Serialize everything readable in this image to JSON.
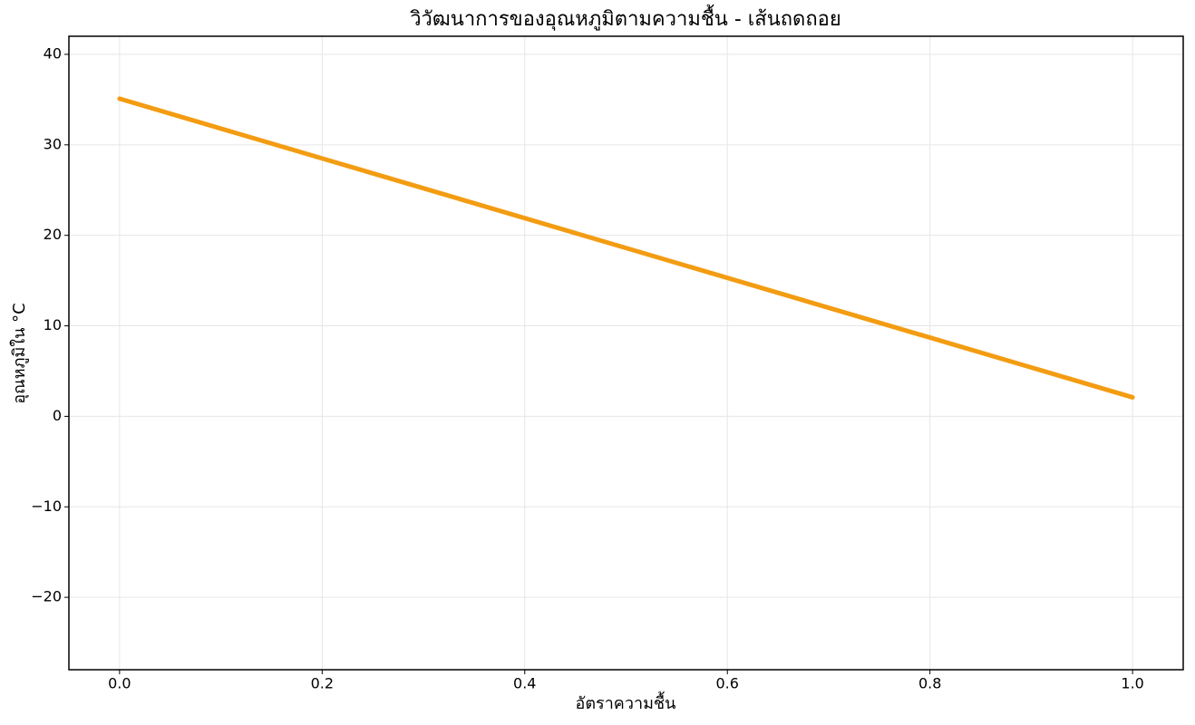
{
  "chart_data": {
    "type": "line",
    "title": "วิวัฒนาการของอุณหภูมิตามความชื้น - เส้นถดถอย",
    "x_label": "อัตราความชื้น",
    "y_label": "อุณหภูมิใน °C",
    "x": [
      0,
      1
    ],
    "values": [
      35.1,
      2.1
    ],
    "color": "#f39c12",
    "xlim": [
      -0.05,
      1.05
    ],
    "xticks": [
      {
        "value": 0,
        "label": "0.0"
      },
      0.2,
      0.4,
      0.6,
      0.8,
      {
        "value": 1,
        "label": "1.0"
      }
    ],
    "ylim": [
      -28,
      42
    ],
    "yticks": [
      {
        "value": -20,
        "label": "−20"
      },
      {
        "value": -10,
        "label": "−10"
      },
      0,
      10,
      20,
      30,
      40
    ],
    "grid": true
  }
}
